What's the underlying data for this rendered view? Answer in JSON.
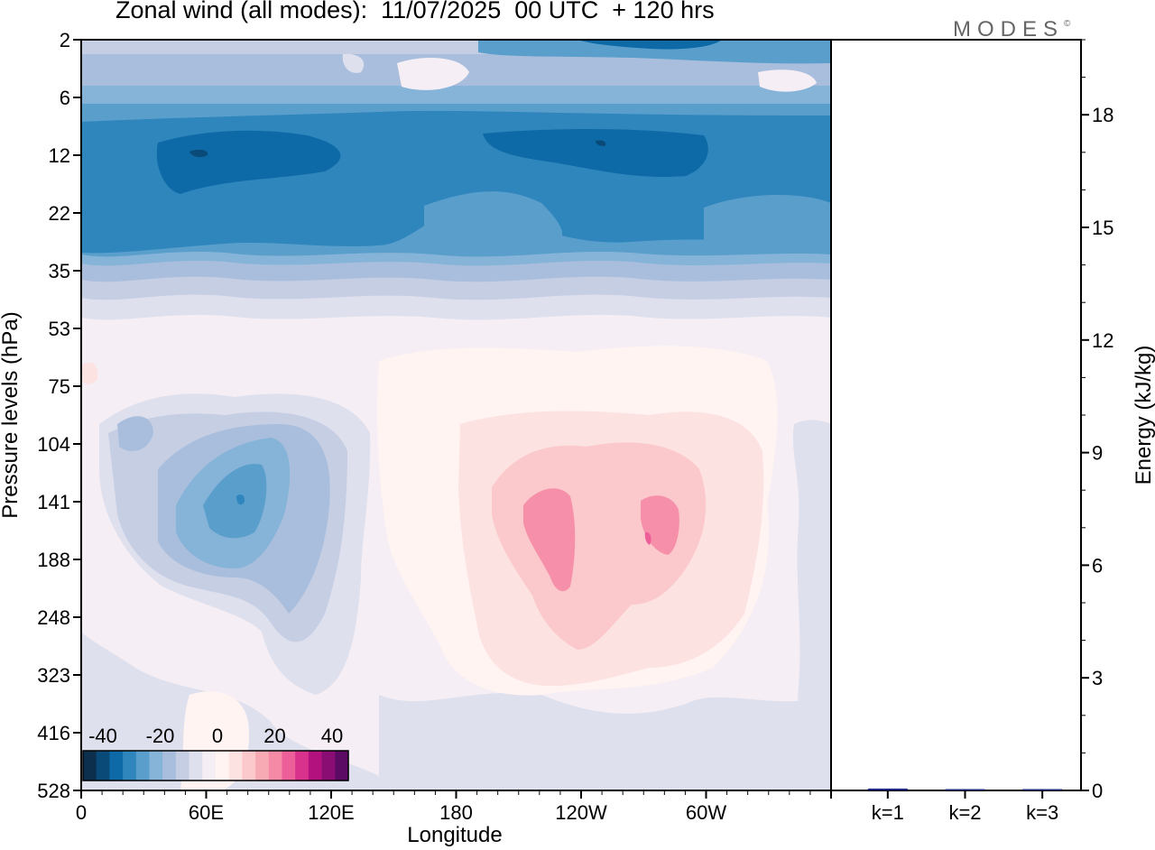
{
  "title": "Zonal wind (all modes):  11/07/2025  00 UTC  + 120 hrs",
  "logo": "MODES",
  "logo_mark": "©",
  "chart_data": [
    {
      "type": "heatmap",
      "xlabel": "Longitude",
      "ylabel": "Pressure levels (hPa)",
      "x_ticks": [
        "0",
        "60E",
        "120E",
        "180",
        "120W",
        "60W"
      ],
      "y_ticks": [
        "2",
        "6",
        "12",
        "22",
        "35",
        "53",
        "75",
        "104",
        "141",
        "188",
        "248",
        "323",
        "416",
        "528"
      ],
      "colorbar": {
        "ticks": [
          "-40",
          "-20",
          "0",
          "20",
          "40"
        ],
        "colors": [
          "#0b2f4d",
          "#0a4a78",
          "#0e6aa6",
          "#2f86bd",
          "#5a9fcc",
          "#86b4d8",
          "#a9bedc",
          "#c6cee4",
          "#dfe0ee",
          "#f5eef4",
          "#fff4f2",
          "#fde2e2",
          "#fbc9cb",
          "#f8aab4",
          "#f58aa6",
          "#ec5f98",
          "#d8328c",
          "#b3127e",
          "#8a0d73",
          "#5b0b63"
        ]
      },
      "features": [
        {
          "name": "stratospheric easterly band",
          "lon": [
            0,
            360
          ],
          "p": [
            6,
            35
          ],
          "value": -30
        },
        {
          "name": "easterly core",
          "lon": [
            40,
            110
          ],
          "p": [
            10,
            16
          ],
          "value": -40
        },
        {
          "name": "easterly core",
          "lon": [
            195,
            300
          ],
          "p": [
            10,
            14
          ],
          "value": -40
        },
        {
          "name": "negative anomaly",
          "lon": [
            45,
            125
          ],
          "p": [
            90,
            260
          ],
          "value": -25
        },
        {
          "name": "westerly maximum",
          "lon": [
            210,
            240
          ],
          "p": [
            120,
            200
          ],
          "value": 20
        },
        {
          "name": "westerly maximum",
          "lon": [
            270,
            290
          ],
          "p": [
            130,
            170
          ],
          "value": 18
        }
      ]
    },
    {
      "type": "bar",
      "categories": [
        "k=1",
        "k=2",
        "k=3"
      ],
      "values": [
        0.05,
        0.02,
        0.02
      ],
      "ylabel": "Energy (kJ/kg)",
      "y_ticks": [
        "0",
        "3",
        "6",
        "9",
        "12",
        "15",
        "18"
      ],
      "ylim": [
        0,
        20
      ],
      "bar_color": "#1a237e"
    }
  ]
}
